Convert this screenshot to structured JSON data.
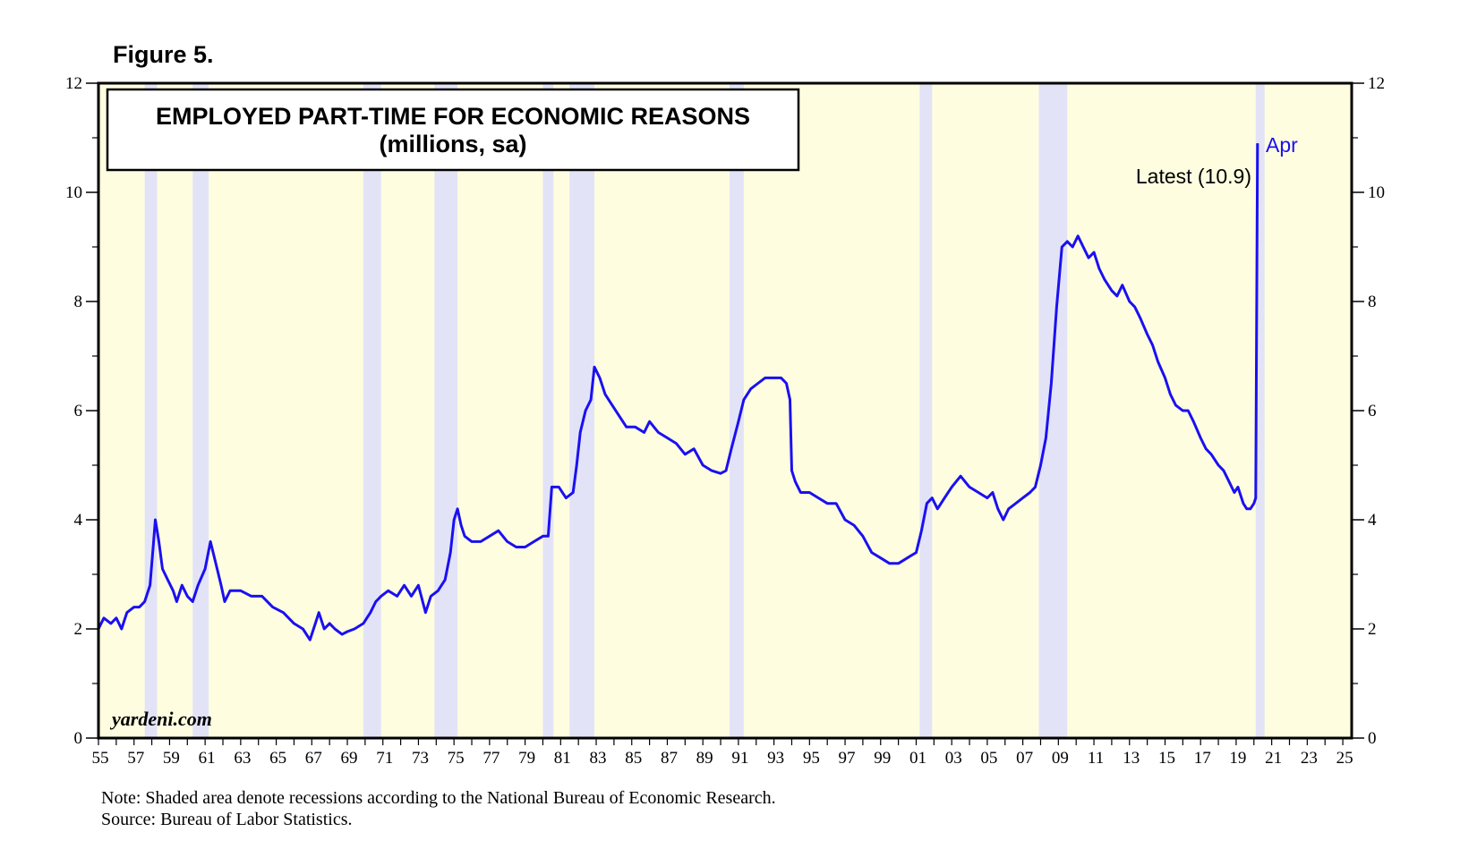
{
  "figure_label": "Figure 5.",
  "notes": {
    "note": "Note: Shaded area denote recessions according to the National Bureau of Economic Research.",
    "source": "Source: Bureau of Labor Statistics."
  },
  "colors": {
    "plot_bg": "#FFFDE0",
    "recession": "#E3E3F8",
    "line": "#1A10F0",
    "apr_label": "#1A10F0"
  },
  "chart_data": {
    "type": "line",
    "title": "EMPLOYED PART-TIME FOR ECONOMIC REASONS",
    "subtitle": "(millions, sa)",
    "xlabel": "",
    "ylabel": "",
    "xlim": [
      1955,
      2025.5
    ],
    "ylim": [
      0,
      12
    ],
    "y_ticks": [
      0,
      2,
      4,
      6,
      8,
      10,
      12
    ],
    "x_tick_labels": [
      "55",
      "57",
      "59",
      "61",
      "63",
      "65",
      "67",
      "69",
      "71",
      "73",
      "75",
      "77",
      "79",
      "81",
      "83",
      "85",
      "87",
      "89",
      "91",
      "93",
      "95",
      "97",
      "99",
      "01",
      "03",
      "05",
      "07",
      "09",
      "11",
      "13",
      "15",
      "17",
      "19",
      "21",
      "23",
      "25"
    ],
    "watermark": "yardeni.com",
    "annotations": {
      "latest": "Latest (10.9)",
      "apr": "Apr"
    },
    "recessions": [
      [
        1957.6,
        1958.3
      ],
      [
        1960.3,
        1961.2
      ],
      [
        1969.9,
        1970.9
      ],
      [
        1973.9,
        1975.2
      ],
      [
        1980.0,
        1980.6
      ],
      [
        1981.5,
        1982.9
      ],
      [
        1990.5,
        1991.3
      ],
      [
        2001.2,
        2001.9
      ],
      [
        2007.9,
        2009.5
      ],
      [
        2020.1,
        2020.6
      ]
    ],
    "series": [
      {
        "name": "Employed part-time for economic reasons",
        "points": [
          [
            1955.0,
            2.0
          ],
          [
            1955.3,
            2.2
          ],
          [
            1955.7,
            2.1
          ],
          [
            1956.0,
            2.2
          ],
          [
            1956.3,
            2.0
          ],
          [
            1956.6,
            2.3
          ],
          [
            1957.0,
            2.4
          ],
          [
            1957.3,
            2.4
          ],
          [
            1957.6,
            2.5
          ],
          [
            1957.9,
            2.8
          ],
          [
            1958.1,
            3.6
          ],
          [
            1958.2,
            4.0
          ],
          [
            1958.4,
            3.6
          ],
          [
            1958.6,
            3.1
          ],
          [
            1958.9,
            2.9
          ],
          [
            1959.2,
            2.7
          ],
          [
            1959.4,
            2.5
          ],
          [
            1959.7,
            2.8
          ],
          [
            1960.0,
            2.6
          ],
          [
            1960.3,
            2.5
          ],
          [
            1960.6,
            2.8
          ],
          [
            1961.0,
            3.1
          ],
          [
            1961.3,
            3.6
          ],
          [
            1961.6,
            3.2
          ],
          [
            1961.9,
            2.8
          ],
          [
            1962.1,
            2.5
          ],
          [
            1962.4,
            2.7
          ],
          [
            1963.0,
            2.7
          ],
          [
            1963.6,
            2.6
          ],
          [
            1964.2,
            2.6
          ],
          [
            1964.8,
            2.4
          ],
          [
            1965.4,
            2.3
          ],
          [
            1966.0,
            2.1
          ],
          [
            1966.5,
            2.0
          ],
          [
            1966.9,
            1.8
          ],
          [
            1967.2,
            2.1
          ],
          [
            1967.4,
            2.3
          ],
          [
            1967.7,
            2.0
          ],
          [
            1968.0,
            2.1
          ],
          [
            1968.3,
            2.0
          ],
          [
            1968.7,
            1.9
          ],
          [
            1969.0,
            1.95
          ],
          [
            1969.4,
            2.0
          ],
          [
            1969.9,
            2.1
          ],
          [
            1970.3,
            2.3
          ],
          [
            1970.6,
            2.5
          ],
          [
            1970.9,
            2.6
          ],
          [
            1971.3,
            2.7
          ],
          [
            1971.8,
            2.6
          ],
          [
            1972.2,
            2.8
          ],
          [
            1972.6,
            2.6
          ],
          [
            1973.0,
            2.8
          ],
          [
            1973.4,
            2.3
          ],
          [
            1973.7,
            2.6
          ],
          [
            1974.1,
            2.7
          ],
          [
            1974.5,
            2.9
          ],
          [
            1974.8,
            3.4
          ],
          [
            1975.0,
            4.0
          ],
          [
            1975.2,
            4.2
          ],
          [
            1975.4,
            3.9
          ],
          [
            1975.6,
            3.7
          ],
          [
            1976.0,
            3.6
          ],
          [
            1976.5,
            3.6
          ],
          [
            1977.0,
            3.7
          ],
          [
            1977.5,
            3.8
          ],
          [
            1978.0,
            3.6
          ],
          [
            1978.5,
            3.5
          ],
          [
            1979.0,
            3.5
          ],
          [
            1979.5,
            3.6
          ],
          [
            1980.0,
            3.7
          ],
          [
            1980.3,
            3.7
          ],
          [
            1980.5,
            4.6
          ],
          [
            1980.9,
            4.6
          ],
          [
            1981.3,
            4.4
          ],
          [
            1981.7,
            4.5
          ],
          [
            1981.9,
            5.0
          ],
          [
            1982.1,
            5.6
          ],
          [
            1982.4,
            6.0
          ],
          [
            1982.7,
            6.2
          ],
          [
            1982.9,
            6.8
          ],
          [
            1983.2,
            6.6
          ],
          [
            1983.5,
            6.3
          ],
          [
            1983.9,
            6.1
          ],
          [
            1984.3,
            5.9
          ],
          [
            1984.7,
            5.7
          ],
          [
            1985.2,
            5.7
          ],
          [
            1985.7,
            5.6
          ],
          [
            1986.0,
            5.8
          ],
          [
            1986.5,
            5.6
          ],
          [
            1987.0,
            5.5
          ],
          [
            1987.5,
            5.4
          ],
          [
            1988.0,
            5.2
          ],
          [
            1988.5,
            5.3
          ],
          [
            1989.0,
            5.0
          ],
          [
            1989.5,
            4.9
          ],
          [
            1990.0,
            4.85
          ],
          [
            1990.3,
            4.9
          ],
          [
            1990.6,
            5.3
          ],
          [
            1991.0,
            5.8
          ],
          [
            1991.3,
            6.2
          ],
          [
            1991.7,
            6.4
          ],
          [
            1992.1,
            6.5
          ],
          [
            1992.5,
            6.6
          ],
          [
            1993.0,
            6.6
          ],
          [
            1993.4,
            6.6
          ],
          [
            1993.7,
            6.5
          ],
          [
            1993.9,
            6.2
          ],
          [
            1994.0,
            4.9
          ],
          [
            1994.2,
            4.7
          ],
          [
            1994.5,
            4.5
          ],
          [
            1995.0,
            4.5
          ],
          [
            1995.5,
            4.4
          ],
          [
            1996.0,
            4.3
          ],
          [
            1996.5,
            4.3
          ],
          [
            1997.0,
            4.0
          ],
          [
            1997.5,
            3.9
          ],
          [
            1998.0,
            3.7
          ],
          [
            1998.5,
            3.4
          ],
          [
            1999.0,
            3.3
          ],
          [
            1999.5,
            3.2
          ],
          [
            2000.0,
            3.2
          ],
          [
            2000.5,
            3.3
          ],
          [
            2001.0,
            3.4
          ],
          [
            2001.3,
            3.8
          ],
          [
            2001.6,
            4.3
          ],
          [
            2001.9,
            4.4
          ],
          [
            2002.2,
            4.2
          ],
          [
            2002.6,
            4.4
          ],
          [
            2003.0,
            4.6
          ],
          [
            2003.5,
            4.8
          ],
          [
            2004.0,
            4.6
          ],
          [
            2004.5,
            4.5
          ],
          [
            2005.0,
            4.4
          ],
          [
            2005.3,
            4.5
          ],
          [
            2005.6,
            4.2
          ],
          [
            2005.9,
            4.0
          ],
          [
            2006.2,
            4.2
          ],
          [
            2006.6,
            4.3
          ],
          [
            2007.0,
            4.4
          ],
          [
            2007.4,
            4.5
          ],
          [
            2007.7,
            4.6
          ],
          [
            2008.0,
            5.0
          ],
          [
            2008.3,
            5.5
          ],
          [
            2008.6,
            6.5
          ],
          [
            2008.9,
            7.9
          ],
          [
            2009.2,
            9.0
          ],
          [
            2009.5,
            9.1
          ],
          [
            2009.8,
            9.0
          ],
          [
            2010.1,
            9.2
          ],
          [
            2010.4,
            9.0
          ],
          [
            2010.7,
            8.8
          ],
          [
            2011.0,
            8.9
          ],
          [
            2011.3,
            8.6
          ],
          [
            2011.6,
            8.4
          ],
          [
            2012.0,
            8.2
          ],
          [
            2012.3,
            8.1
          ],
          [
            2012.6,
            8.3
          ],
          [
            2013.0,
            8.0
          ],
          [
            2013.3,
            7.9
          ],
          [
            2013.6,
            7.7
          ],
          [
            2014.0,
            7.4
          ],
          [
            2014.3,
            7.2
          ],
          [
            2014.6,
            6.9
          ],
          [
            2015.0,
            6.6
          ],
          [
            2015.3,
            6.3
          ],
          [
            2015.6,
            6.1
          ],
          [
            2016.0,
            6.0
          ],
          [
            2016.3,
            6.0
          ],
          [
            2016.6,
            5.8
          ],
          [
            2017.0,
            5.5
          ],
          [
            2017.3,
            5.3
          ],
          [
            2017.6,
            5.2
          ],
          [
            2018.0,
            5.0
          ],
          [
            2018.3,
            4.9
          ],
          [
            2018.6,
            4.7
          ],
          [
            2018.9,
            4.5
          ],
          [
            2019.1,
            4.6
          ],
          [
            2019.4,
            4.3
          ],
          [
            2019.6,
            4.2
          ],
          [
            2019.8,
            4.2
          ],
          [
            2020.0,
            4.3
          ],
          [
            2020.1,
            4.4
          ],
          [
            2020.2,
            10.9
          ]
        ]
      }
    ]
  }
}
